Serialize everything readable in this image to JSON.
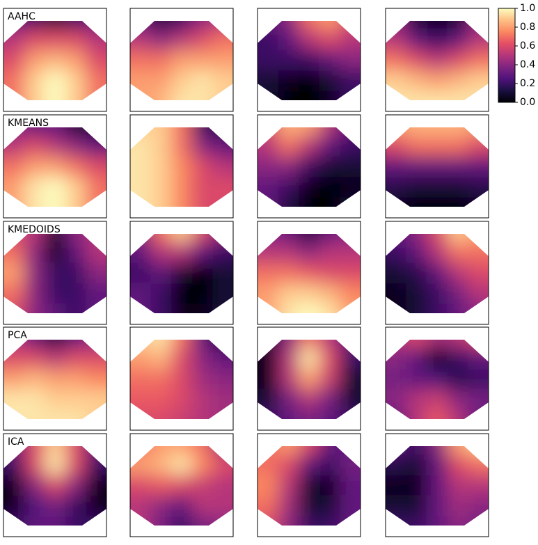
{
  "chart_data": {
    "type": "heatmap",
    "colormap": "magma",
    "clim": [
      0,
      1
    ],
    "cticks": [
      {
        "value": 0,
        "label": "0.0"
      },
      0.2,
      0.4,
      0.6,
      0.8,
      {
        "value": 1,
        "label": "1.0"
      }
    ],
    "rows": [
      {
        "label": "AAHC",
        "maps": [
          [
            [
              0.3,
              0.2,
              0.1,
              0.2,
              0.3
            ],
            [
              0.5,
              0.6,
              0.6,
              0.6,
              0.5
            ],
            [
              0.6,
              0.8,
              0.85,
              0.8,
              0.6
            ],
            [
              0.7,
              0.9,
              1,
              0.9,
              0.7
            ],
            [
              0.7,
              0.9,
              1,
              0.9,
              0.7
            ]
          ],
          [
            [
              0.3,
              0.1,
              0.2,
              0.4,
              0.5
            ],
            [
              0.5,
              0.4,
              0.5,
              0.6,
              0.7
            ],
            [
              0.7,
              0.7,
              0.8,
              0.8,
              0.8
            ],
            [
              0.8,
              0.8,
              0.9,
              0.95,
              0.9
            ],
            [
              0.8,
              0.85,
              0.95,
              0.95,
              0.9
            ]
          ],
          [
            [
              0.3,
              0.4,
              0.7,
              0.8,
              0.6
            ],
            [
              0.2,
              0.3,
              0.5,
              0.6,
              0.5
            ],
            [
              0.2,
              0.2,
              0.2,
              0.3,
              0.4
            ],
            [
              0.1,
              0.05,
              0,
              0.1,
              0.2
            ],
            [
              0.1,
              0,
              0,
              0.05,
              0.2
            ]
          ],
          [
            [
              0.4,
              0.1,
              0,
              0.1,
              0.4
            ],
            [
              0.5,
              0.3,
              0.2,
              0.3,
              0.5
            ],
            [
              0.7,
              0.6,
              0.5,
              0.6,
              0.7
            ],
            [
              0.9,
              0.85,
              0.8,
              0.85,
              0.9
            ],
            [
              0.95,
              0.95,
              0.95,
              0.95,
              0.95
            ]
          ]
        ]
      },
      {
        "label": "KMEANS",
        "maps": [
          [
            [
              0.4,
              0.3,
              0.3,
              0.1,
              0
            ],
            [
              0.5,
              0.6,
              0.5,
              0.4,
              0.3
            ],
            [
              0.7,
              0.8,
              0.8,
              0.7,
              0.6
            ],
            [
              0.8,
              0.95,
              1,
              0.9,
              0.7
            ],
            [
              0.8,
              0.95,
              1,
              0.9,
              0.7
            ]
          ],
          [
            [
              0.9,
              0.9,
              0.7,
              0.2,
              0.1
            ],
            [
              0.95,
              0.9,
              0.7,
              0.4,
              0.3
            ],
            [
              0.95,
              0.9,
              0.75,
              0.6,
              0.5
            ],
            [
              0.95,
              0.9,
              0.75,
              0.6,
              0.6
            ],
            [
              0.95,
              0.9,
              0.75,
              0.6,
              0.6
            ]
          ],
          [
            [
              0.6,
              0.85,
              0.8,
              0.5,
              0.3
            ],
            [
              0.5,
              0.7,
              0.5,
              0.3,
              0.2
            ],
            [
              0.4,
              0.4,
              0.2,
              0.1,
              0.1
            ],
            [
              0.3,
              0.2,
              0.05,
              0,
              0.05
            ],
            [
              0.3,
              0.1,
              0,
              0,
              0.1
            ]
          ],
          [
            [
              0.8,
              0.85,
              0.85,
              0.85,
              0.8
            ],
            [
              0.6,
              0.7,
              0.7,
              0.7,
              0.6
            ],
            [
              0.3,
              0.3,
              0.3,
              0.3,
              0.3
            ],
            [
              0.15,
              0.1,
              0.1,
              0.1,
              0.15
            ],
            [
              0.05,
              0,
              0,
              0,
              0.05
            ]
          ]
        ]
      },
      {
        "label": "KMEDOIDS",
        "maps": [
          [
            [
              0.6,
              0.5,
              0.1,
              0.4,
              0.5
            ],
            [
              0.7,
              0.4,
              0.05,
              0.3,
              0.5
            ],
            [
              0.8,
              0.4,
              0.2,
              0.2,
              0.4
            ],
            [
              0.7,
              0.4,
              0.2,
              0.2,
              0.3
            ],
            [
              0.6,
              0.4,
              0.3,
              0.2,
              0.3
            ]
          ],
          [
            [
              0.4,
              0.7,
              0.9,
              0.6,
              0.4
            ],
            [
              0.3,
              0.5,
              0.5,
              0.3,
              0.2
            ],
            [
              0.2,
              0.3,
              0.1,
              0,
              0.1
            ],
            [
              0.3,
              0.2,
              0,
              0,
              0.1
            ],
            [
              0.3,
              0.2,
              0.05,
              0.05,
              0.1
            ]
          ],
          [
            [
              0.4,
              0.3,
              0.1,
              0.3,
              0.4
            ],
            [
              0.5,
              0.5,
              0.4,
              0.5,
              0.5
            ],
            [
              0.7,
              0.7,
              0.65,
              0.6,
              0.6
            ],
            [
              0.8,
              0.9,
              0.9,
              0.85,
              0.75
            ],
            [
              0.8,
              0.95,
              1,
              0.95,
              0.8
            ]
          ],
          [
            [
              0.3,
              0.4,
              0.6,
              0.9,
              0.8
            ],
            [
              0.2,
              0.3,
              0.5,
              0.7,
              0.7
            ],
            [
              0.1,
              0.15,
              0.3,
              0.5,
              0.6
            ],
            [
              0.05,
              0.1,
              0.2,
              0.35,
              0.5
            ],
            [
              0.05,
              0.1,
              0.2,
              0.3,
              0.4
            ]
          ]
        ]
      },
      {
        "label": "PCA",
        "maps": [
          [
            [
              0.5,
              0.3,
              0.1,
              0.3,
              0.4
            ],
            [
              0.6,
              0.6,
              0.5,
              0.6,
              0.6
            ],
            [
              0.8,
              0.85,
              0.8,
              0.8,
              0.75
            ],
            [
              0.95,
              0.95,
              0.9,
              0.9,
              0.9
            ],
            [
              0.95,
              0.95,
              0.95,
              0.95,
              0.9
            ]
          ],
          [
            [
              0.9,
              0.95,
              0.7,
              0.3,
              0.1
            ],
            [
              0.8,
              0.85,
              0.6,
              0.4,
              0.3
            ],
            [
              0.7,
              0.7,
              0.6,
              0.45,
              0.4
            ],
            [
              0.65,
              0.65,
              0.6,
              0.5,
              0.45
            ],
            [
              0.6,
              0.6,
              0.55,
              0.5,
              0.45
            ]
          ],
          [
            [
              0.1,
              0.4,
              0.7,
              0.5,
              0.3
            ],
            [
              0.05,
              0.5,
              0.95,
              0.6,
              0.2
            ],
            [
              0.05,
              0.5,
              0.8,
              0.55,
              0.1
            ],
            [
              0.1,
              0.35,
              0.5,
              0.35,
              0.1
            ],
            [
              0.2,
              0.3,
              0.35,
              0.3,
              0.2
            ]
          ],
          [
            [
              0.5,
              0.6,
              0.45,
              0.5,
              0.6
            ],
            [
              0.4,
              0.3,
              0.05,
              0.2,
              0.3
            ],
            [
              0.35,
              0.3,
              0.25,
              0.15,
              0.2
            ],
            [
              0.4,
              0.5,
              0.55,
              0.4,
              0.35
            ],
            [
              0.3,
              0.5,
              0.65,
              0.5,
              0.3
            ]
          ]
        ]
      },
      {
        "label": "ICA",
        "maps": [
          [
            [
              0.3,
              0.6,
              0.9,
              0.6,
              0.3
            ],
            [
              0.2,
              0.6,
              0.95,
              0.6,
              0.2
            ],
            [
              0.05,
              0.4,
              0.6,
              0.4,
              0.05
            ],
            [
              0.05,
              0.25,
              0.35,
              0.2,
              0.05
            ],
            [
              0.2,
              0.3,
              0.3,
              0.2,
              0.2
            ]
          ],
          [
            [
              0.7,
              0.8,
              0.8,
              0.7,
              0.4
            ],
            [
              0.8,
              0.85,
              0.95,
              0.75,
              0.6
            ],
            [
              0.6,
              0.65,
              0.6,
              0.55,
              0.5
            ],
            [
              0.5,
              0.4,
              0.3,
              0.5,
              0.5
            ],
            [
              0.5,
              0.35,
              0.2,
              0.35,
              0.4
            ]
          ],
          [
            [
              0.7,
              0.8,
              0.6,
              0.3,
              0.3
            ],
            [
              0.7,
              0.6,
              0.3,
              0.2,
              0.35
            ],
            [
              0.75,
              0.5,
              0.1,
              0.05,
              0.3
            ],
            [
              0.7,
              0.45,
              0.1,
              0.1,
              0.3
            ],
            [
              0.6,
              0.4,
              0.2,
              0.2,
              0.3
            ]
          ],
          [
            [
              0.3,
              0.2,
              0.4,
              0.8,
              0.9
            ],
            [
              0.15,
              0.1,
              0.3,
              0.6,
              0.7
            ],
            [
              0.05,
              0.05,
              0.3,
              0.5,
              0.5
            ],
            [
              0.1,
              0.1,
              0.3,
              0.45,
              0.4
            ],
            [
              0.2,
              0.2,
              0.3,
              0.4,
              0.35
            ]
          ]
        ]
      }
    ]
  }
}
